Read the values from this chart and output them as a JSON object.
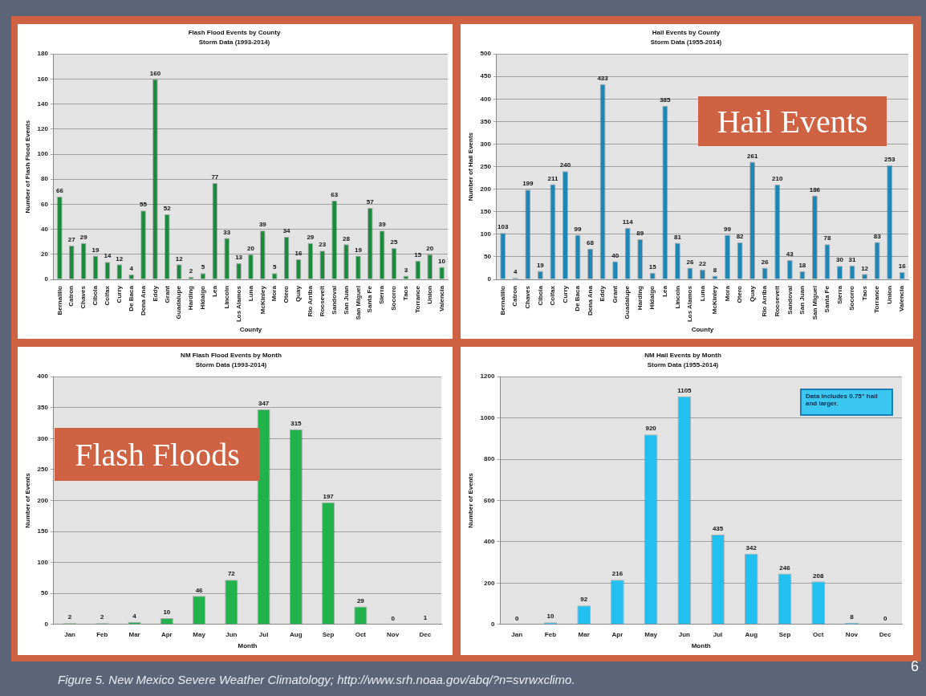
{
  "chart_data": [
    {
      "type": "bar",
      "title": "Flash Flood Events by County",
      "subtitle": "Storm Data (1993-2014)",
      "xlabel": "County",
      "ylabel": "Number of Flash Flood Events",
      "categories": [
        "Bernalillo",
        "Catron",
        "Chaves",
        "Cibola",
        "Colfax",
        "Curry",
        "De Baca",
        "Dona Ana",
        "Eddy",
        "Grant",
        "Guadalupe",
        "Harding",
        "Hidalgo",
        "Lea",
        "Lincoln",
        "Los Alamos",
        "Luna",
        "McKinley",
        "Mora",
        "Otero",
        "Quay",
        "Rio Arriba",
        "Roosevelt",
        "Sandoval",
        "San Juan",
        "San Miguel",
        "Santa Fe",
        "Sierra",
        "Socorro",
        "Taos",
        "Torrance",
        "Union",
        "Valencia"
      ],
      "values": [
        66,
        27,
        29,
        19,
        14,
        12,
        4,
        55,
        160,
        52,
        12,
        2,
        5,
        77,
        33,
        13,
        20,
        39,
        5,
        34,
        16,
        29,
        23,
        63,
        28,
        19,
        57,
        39,
        25,
        3,
        15,
        20,
        10
      ],
      "color": "#1b8a3c",
      "ylim": [
        0,
        180
      ],
      "yticks": [
        0,
        20,
        40,
        60,
        80,
        100,
        120,
        140,
        160,
        180
      ],
      "grid": "y",
      "data_labels": true,
      "legend": false
    },
    {
      "type": "bar",
      "title": "Hail Events by County",
      "subtitle": "Storm Data (1955-2014)",
      "xlabel": "County",
      "ylabel": "Number of Hail Events",
      "categories": [
        "Bernalillo",
        "Catron",
        "Chaves",
        "Cibola",
        "Colfax",
        "Curry",
        "De Baca",
        "Dona Ana",
        "Eddy",
        "Grant",
        "Guadalupe",
        "Harding",
        "Hidalgo",
        "Lea",
        "Lincoln",
        "Los Alamos",
        "Luna",
        "McKinley",
        "Mora",
        "Otero",
        "Quay",
        "Rio Arriba",
        "Roosevelt",
        "Sandoval",
        "San Juan",
        "San Miguel",
        "Santa Fe",
        "Sierra",
        "Socorro",
        "Taos",
        "Torrance",
        "Union",
        "Valencia"
      ],
      "values": [
        103,
        4,
        199,
        19,
        211,
        240,
        99,
        68,
        433,
        40,
        114,
        89,
        15,
        385,
        81,
        26,
        22,
        8,
        99,
        82,
        261,
        26,
        210,
        43,
        18,
        186,
        78,
        30,
        31,
        12,
        83,
        253,
        16
      ],
      "color": "#1d86b5",
      "ylim": [
        0,
        500
      ],
      "yticks": [
        0,
        50,
        100,
        150,
        200,
        250,
        300,
        350,
        400,
        450,
        500
      ],
      "grid": "y",
      "data_labels": true,
      "legend": false,
      "annotations": [
        "Hail Events"
      ]
    },
    {
      "type": "bar",
      "title": "NM Flash Flood Events by Month",
      "subtitle": "Storm Data (1993-2014)",
      "xlabel": "Month",
      "ylabel": "Number of Events",
      "categories": [
        "Jan",
        "Feb",
        "Mar",
        "Apr",
        "May",
        "Jun",
        "Jul",
        "Aug",
        "Sep",
        "Oct",
        "Nov",
        "Dec"
      ],
      "values": [
        2,
        2,
        4,
        10,
        46,
        72,
        347,
        315,
        197,
        29,
        0,
        1
      ],
      "color": "#22b24c",
      "ylim": [
        0,
        400
      ],
      "yticks": [
        0,
        50,
        100,
        150,
        200,
        250,
        300,
        350,
        400
      ],
      "grid": "y",
      "data_labels": true,
      "legend": false,
      "annotations": [
        "Flash Floods"
      ]
    },
    {
      "type": "bar",
      "title": "NM Hail Events by Month",
      "subtitle": "Storm Data (1955-2014)",
      "xlabel": "Month",
      "ylabel": "Number of Events",
      "categories": [
        "Jan",
        "Feb",
        "Mar",
        "Apr",
        "May",
        "Jun",
        "Jul",
        "Aug",
        "Sep",
        "Oct",
        "Nov",
        "Dec"
      ],
      "values": [
        0,
        10,
        92,
        216,
        920,
        1105,
        435,
        342,
        246,
        208,
        8,
        0
      ],
      "color": "#22c0f0",
      "ylim": [
        0,
        1200
      ],
      "yticks": [
        0,
        200,
        400,
        600,
        800,
        1000,
        1200
      ],
      "grid": "y",
      "data_labels": true,
      "legend": false,
      "annotations": [
        "Data includes 0.75\" hail and larger.",
        "Figure 5.  New Mexico Severe Weather Climatology; http://www.srh.noaa.gov/abq/?n=svrwxclimo.",
        "6"
      ]
    }
  ]
}
